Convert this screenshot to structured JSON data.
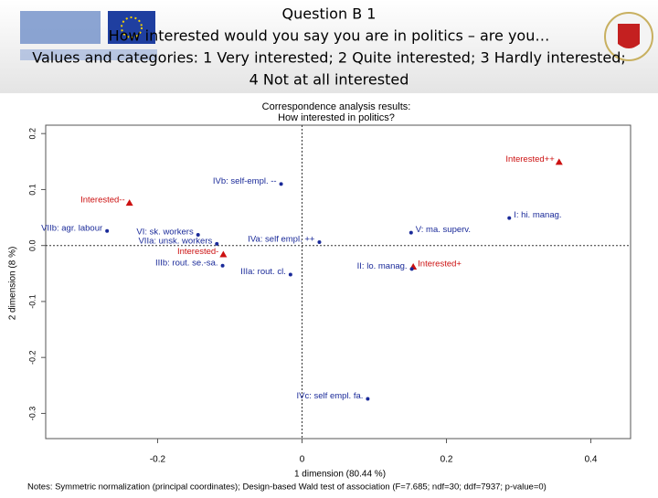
{
  "header": {
    "lines": [
      "Question B 1",
      "How interested would you say you are in politics – are you…",
      "Values and categories: 1 Very interested; 2 Quite interested; 3 Hardly interested;",
      "4 Not at all interested"
    ]
  },
  "chart_data": {
    "type": "scatter",
    "title": [
      "Correspondence analysis results:",
      "How interested in politics?"
    ],
    "x_label": "1 dimension (80.44 %)",
    "y_label": "2 dimension (8 %)",
    "notes": "Notes: Symmetric normalization (principal coordinates); Design-based Wald test of association (F=7.685; ndf=30; ddf=7937; p-value=0)",
    "xlim": [
      -0.355,
      0.455
    ],
    "ylim": [
      -0.345,
      0.215
    ],
    "xticks": [
      -0.2,
      0,
      0.2,
      0.4
    ],
    "yticks": [
      0.2,
      0.1,
      {
        "value": 0,
        "label": "0.0"
      },
      -0.1,
      -0.2,
      -0.3
    ],
    "series": [
      {
        "color": "#cc1111",
        "marker": "triangle",
        "labels": [
          "Interested++",
          "Interested--",
          "Interested-",
          "Interested+"
        ],
        "x": [
          0.356,
          -0.239,
          -0.109,
          0.154
        ],
        "values": [
          0.149,
          0.076,
          -0.016,
          -0.038
        ]
      },
      {
        "color": "#1a2a99",
        "marker": "circle",
        "labels": [
          "IVb: self-empl. --",
          "I: hi. manag.",
          "V: ma. superv.",
          "VIIb: agr. labour",
          "VI: sk. workers",
          "VIIa: unsk. workers",
          "IVa: self empl. ++",
          "IIIb: rout. se.-sa.",
          "IIIa: rout. cl.",
          "II: lo. manag.",
          "IVc: self empl. fa."
        ],
        "x": [
          -0.029,
          0.287,
          0.151,
          -0.27,
          -0.144,
          -0.118,
          0.024,
          -0.11,
          -0.016,
          0.152,
          0.091
        ],
        "values": [
          0.11,
          0.049,
          0.023,
          0.026,
          0.019,
          0.003,
          0.006,
          -0.036,
          -0.052,
          -0.042,
          -0.274
        ]
      }
    ]
  }
}
